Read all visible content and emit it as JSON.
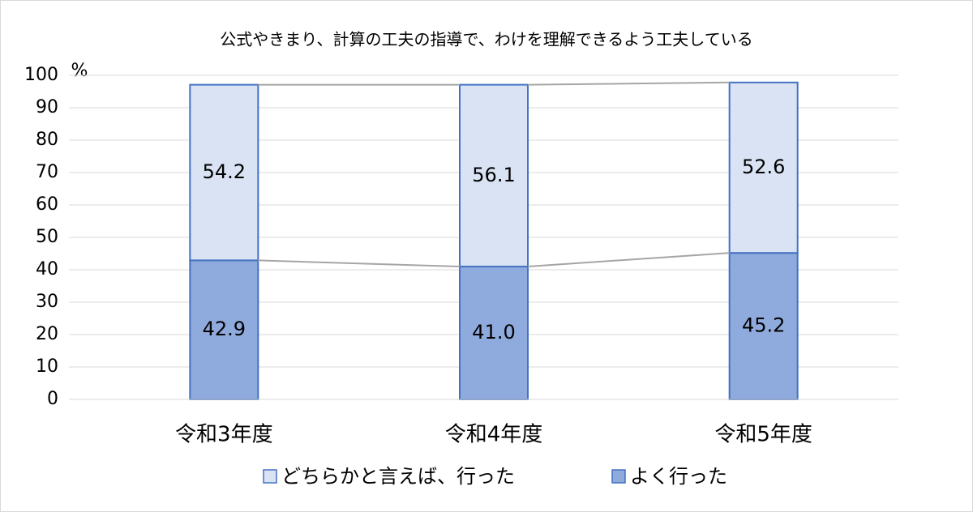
{
  "chart_data": {
    "type": "stacked_bar",
    "title": "公式やきまり、計算の工夫の指導で、わけを理解できるよう工夫している",
    "y_unit": "%",
    "categories": [
      "令和3年度",
      "令和4年度",
      "令和5年度"
    ],
    "series": [
      {
        "name": "よく行った",
        "color": "#8faadc",
        "values": [
          42.9,
          41.0,
          45.2
        ],
        "value_labels": [
          "42.9",
          "41.0",
          "45.2"
        ]
      },
      {
        "name": "どちらかと言えば、行った",
        "color": "#dae3f3",
        "values": [
          54.2,
          56.1,
          52.6
        ]
      }
    ],
    "bar_edge_color": "#4472c4",
    "series_lines": true,
    "ylim": [
      0,
      100
    ],
    "yticks": [
      0,
      10,
      20,
      30,
      40,
      50,
      60,
      70,
      80,
      90,
      100
    ],
    "grid": true
  }
}
